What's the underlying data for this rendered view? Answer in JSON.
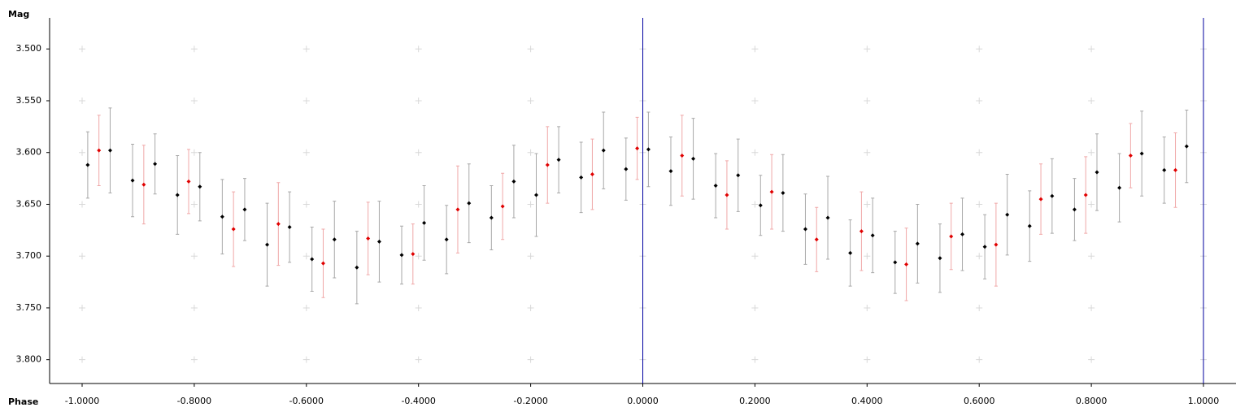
{
  "chart_data": {
    "type": "scatter",
    "x_label": "Phase",
    "y_label": "Mag",
    "xlim": [
      -1.058,
      1.058
    ],
    "ylim": [
      3.47,
      3.823
    ],
    "y_inverted": true,
    "grid": true,
    "xticks": [
      {
        "value": -1,
        "label": "-1.0000"
      },
      {
        "value": -0.8,
        "label": "-0.8000"
      },
      {
        "value": -0.6,
        "label": "-0.6000"
      },
      {
        "value": -0.4,
        "label": "-0.4000"
      },
      {
        "value": -0.2,
        "label": "-0.2000"
      },
      {
        "value": 0,
        "label": "0.0000"
      },
      {
        "value": 0.2,
        "label": "0.2000"
      },
      {
        "value": 0.4,
        "label": "0.4000"
      },
      {
        "value": 0.6,
        "label": "0.6000"
      },
      {
        "value": 0.8,
        "label": "0.8000"
      },
      {
        "value": 1,
        "label": "1.0000"
      }
    ],
    "yticks": [
      {
        "value": 3.5,
        "label": "3.500"
      },
      {
        "value": 3.55,
        "label": "3.550"
      },
      {
        "value": 3.6,
        "label": "3.600"
      },
      {
        "value": 3.65,
        "label": "3.650"
      },
      {
        "value": 3.7,
        "label": "3.700"
      },
      {
        "value": 3.75,
        "label": "3.750"
      },
      {
        "value": 3.8,
        "label": "3.800"
      }
    ],
    "vlines": [
      0,
      1
    ],
    "vline_color": "#0000a0",
    "series": [
      {
        "color": "#000000",
        "error_color": "#a8a8a8",
        "x": [
          -0.99,
          -0.95,
          -0.91,
          -0.87,
          -0.83,
          -0.79,
          -0.75,
          -0.71,
          -0.67,
          -0.63,
          -0.59,
          -0.55,
          -0.51,
          -0.47,
          -0.43,
          -0.39,
          -0.35,
          -0.31,
          -0.27,
          -0.23,
          -0.19,
          -0.15,
          -0.11,
          -0.07,
          -0.03,
          0.01,
          0.05,
          0.09,
          0.13,
          0.17,
          0.21,
          0.25,
          0.29,
          0.33,
          0.37,
          0.41,
          0.45,
          0.49,
          0.53,
          0.57,
          0.61,
          0.65,
          0.69,
          0.73,
          0.77,
          0.81,
          0.85,
          0.89,
          0.93,
          0.97
        ],
        "values": [
          3.612,
          3.598,
          3.627,
          3.611,
          3.641,
          3.633,
          3.662,
          3.655,
          3.689,
          3.672,
          3.703,
          3.684,
          3.711,
          3.686,
          3.699,
          3.668,
          3.684,
          3.649,
          3.663,
          3.628,
          3.641,
          3.607,
          3.624,
          3.598,
          3.616,
          3.597,
          3.618,
          3.606,
          3.632,
          3.622,
          3.651,
          3.639,
          3.674,
          3.663,
          3.697,
          3.68,
          3.706,
          3.688,
          3.702,
          3.679,
          3.691,
          3.66,
          3.671,
          3.642,
          3.655,
          3.619,
          3.634,
          3.601,
          3.617,
          3.594
        ],
        "errors": [
          0.032,
          0.041,
          0.035,
          0.029,
          0.038,
          0.033,
          0.036,
          0.03,
          0.04,
          0.034,
          0.031,
          0.037,
          0.035,
          0.039,
          0.028,
          0.036,
          0.033,
          0.038,
          0.031,
          0.035,
          0.04,
          0.032,
          0.034,
          0.037,
          0.03,
          0.036,
          0.033,
          0.039,
          0.031,
          0.035,
          0.029,
          0.037,
          0.034,
          0.04,
          0.032,
          0.036,
          0.03,
          0.038,
          0.033,
          0.035,
          0.031,
          0.039,
          0.034,
          0.036,
          0.03,
          0.037,
          0.033,
          0.041,
          0.032,
          0.035
        ]
      },
      {
        "color": "#e00000",
        "error_color": "#f0a8a8",
        "x": [
          -0.97,
          -0.89,
          -0.81,
          -0.73,
          -0.65,
          -0.57,
          -0.49,
          -0.41,
          -0.33,
          -0.25,
          -0.17,
          -0.09,
          -0.01,
          0.07,
          0.15,
          0.23,
          0.31,
          0.39,
          0.47,
          0.55,
          0.63,
          0.71,
          0.79,
          0.87,
          0.95
        ],
        "values": [
          3.598,
          3.631,
          3.628,
          3.674,
          3.669,
          3.707,
          3.683,
          3.698,
          3.655,
          3.652,
          3.612,
          3.621,
          3.596,
          3.603,
          3.641,
          3.638,
          3.684,
          3.676,
          3.708,
          3.681,
          3.689,
          3.645,
          3.641,
          3.603,
          3.617
        ],
        "errors": [
          0.034,
          0.038,
          0.031,
          0.036,
          0.04,
          0.033,
          0.035,
          0.029,
          0.042,
          0.032,
          0.037,
          0.034,
          0.03,
          0.039,
          0.033,
          0.036,
          0.031,
          0.038,
          0.035,
          0.032,
          0.04,
          0.034,
          0.037,
          0.031,
          0.036
        ]
      }
    ]
  }
}
